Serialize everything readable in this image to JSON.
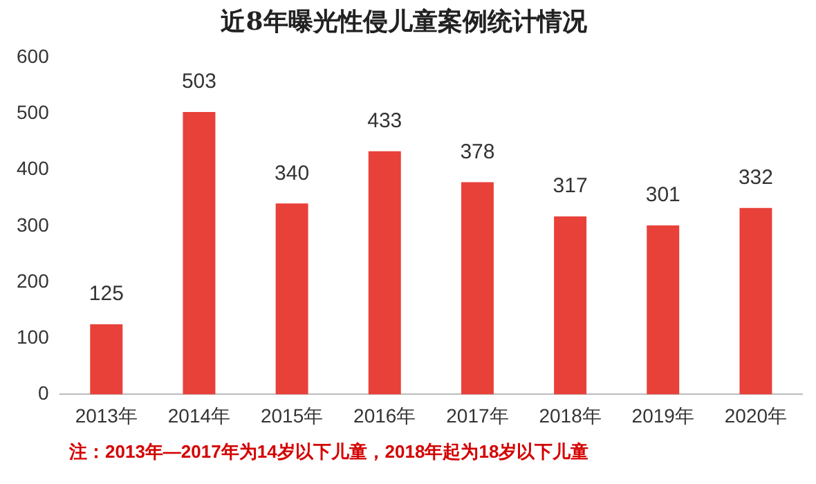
{
  "chart_data": {
    "type": "bar",
    "title": "近8年曝光性侵儿童案例统计情况",
    "categories": [
      "2013年",
      "2014年",
      "2015年",
      "2016年",
      "2017年",
      "2018年",
      "2019年",
      "2020年"
    ],
    "values": [
      125,
      503,
      340,
      433,
      378,
      317,
      301,
      332
    ],
    "color": "#e8413a",
    "ylim": [
      0,
      600
    ],
    "yticks": [
      0,
      100,
      200,
      300,
      400,
      500,
      600
    ],
    "grid": false,
    "data_labels": true,
    "annotations": [
      "注：2013年—2017年为14岁以下儿童，2018年起为18岁以下儿童"
    ]
  }
}
